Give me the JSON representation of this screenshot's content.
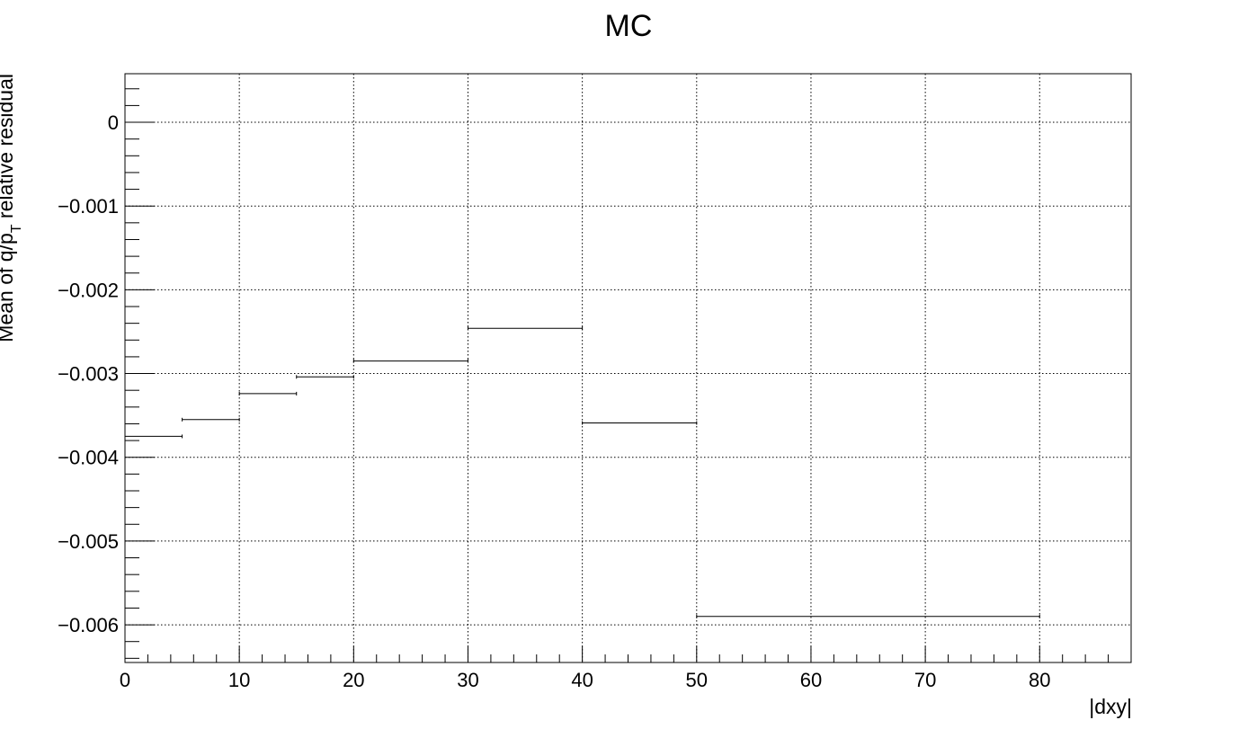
{
  "chart_data": {
    "type": "step",
    "title": "MC",
    "xlabel": "|dxy|",
    "ylabel": {
      "prefix": "Mean of q/p",
      "subscript": "T",
      "suffix": " relative residual"
    },
    "xlim": [
      0,
      88
    ],
    "ylim": [
      -0.00645,
      0.00058
    ],
    "x_ticks": [
      0,
      10,
      20,
      30,
      40,
      50,
      60,
      70,
      80
    ],
    "x_tick_labels": [
      "0",
      "10",
      "20",
      "30",
      "40",
      "50",
      "60",
      "70",
      "80"
    ],
    "y_ticks": [
      0,
      -0.001,
      -0.002,
      -0.003,
      -0.004,
      -0.005,
      -0.006
    ],
    "y_tick_labels": [
      "0",
      "−0.001",
      "−0.002",
      "−0.003",
      "−0.004",
      "−0.005",
      "−0.006"
    ],
    "grid": true,
    "bins": [
      {
        "x_low": 0,
        "x_high": 5,
        "value": -0.00375
      },
      {
        "x_low": 5,
        "x_high": 10,
        "value": -0.00355
      },
      {
        "x_low": 10,
        "x_high": 15,
        "value": -0.00324
      },
      {
        "x_low": 15,
        "x_high": 20,
        "value": -0.00304
      },
      {
        "x_low": 20,
        "x_high": 30,
        "value": -0.00285
      },
      {
        "x_low": 30,
        "x_high": 40,
        "value": -0.00246
      },
      {
        "x_low": 40,
        "x_high": 50,
        "value": -0.00359
      },
      {
        "x_low": 50,
        "x_high": 80,
        "value": -0.0059
      }
    ],
    "colors": {
      "line": "#000000",
      "grid": "#000000",
      "background": "#ffffff"
    }
  }
}
